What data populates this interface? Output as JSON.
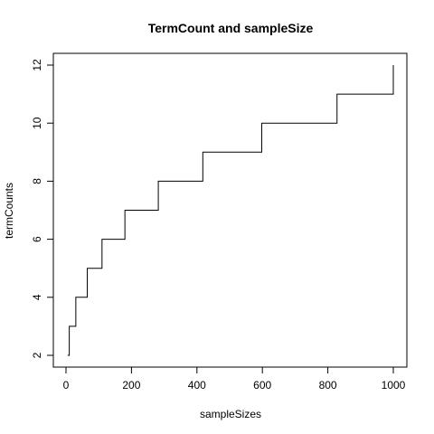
{
  "chart_data": {
    "type": "line",
    "title": "TermCount and sampleSize",
    "xlabel": "sampleSizes",
    "ylabel": "termCounts",
    "xlim": [
      0,
      1000
    ],
    "ylim": [
      2,
      12
    ],
    "x_ticks": [
      0,
      200,
      400,
      600,
      800,
      1000
    ],
    "y_ticks": [
      2,
      4,
      6,
      8,
      10,
      12
    ],
    "step": "post",
    "series": [
      {
        "x": [
          5,
          10,
          30,
          65,
          110,
          180,
          282,
          418,
          598,
          828,
          1000
        ],
        "values": [
          2,
          3,
          4,
          5,
          6,
          7,
          8,
          9,
          10,
          11,
          12
        ]
      }
    ],
    "grid": false,
    "legend": "none"
  }
}
